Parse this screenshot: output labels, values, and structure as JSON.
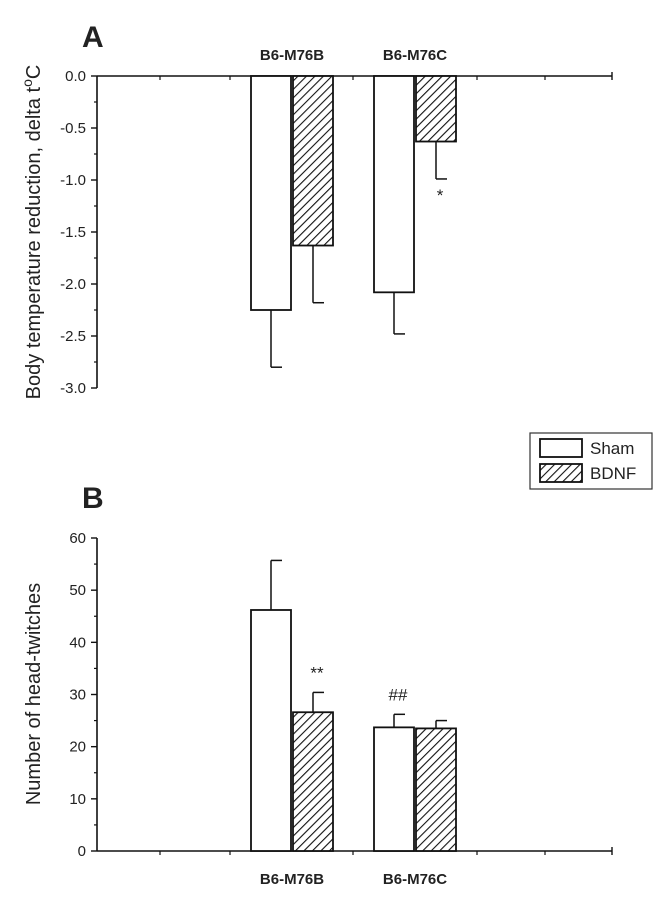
{
  "panel_a_label": "A",
  "panel_b_label": "B",
  "legend": [
    {
      "label": "Sham",
      "pattern": "open"
    },
    {
      "label": "BDNF",
      "pattern": "hatched"
    }
  ],
  "chart_data": [
    {
      "type": "bar",
      "panel": "A",
      "categories": [
        "B6-M76B",
        "B6-M76C"
      ],
      "ylabel_main": "Body temperature reduction, delta t",
      "ylabel_sup": "o",
      "ylabel_tail": "C",
      "ylim": [
        -3.0,
        0.0
      ],
      "yticks": [
        0.0,
        -0.5,
        -1.0,
        -1.5,
        -2.0,
        -2.5,
        -3.0
      ],
      "ytick_labels": [
        "0.0",
        "-0.5",
        "-1.0",
        "-1.5",
        "-2.0",
        "-2.5",
        "-3.0"
      ],
      "series": [
        {
          "name": "Sham",
          "values": [
            -2.25,
            -2.08
          ],
          "errors": [
            0.55,
            0.4
          ]
        },
        {
          "name": "BDNF",
          "values": [
            -1.63,
            -0.63
          ],
          "errors": [
            0.55,
            0.36
          ]
        }
      ],
      "annotations": [
        {
          "category": "B6-M76C",
          "series": "BDNF",
          "text": "*"
        }
      ]
    },
    {
      "type": "bar",
      "panel": "B",
      "categories": [
        "B6-M76B",
        "B6-M76C"
      ],
      "ylabel": "Number of head-twitches",
      "ylim": [
        0,
        60
      ],
      "yticks": [
        0,
        10,
        20,
        30,
        40,
        50,
        60
      ],
      "ytick_labels": [
        "0",
        "10",
        "20",
        "30",
        "40",
        "50",
        "60"
      ],
      "series": [
        {
          "name": "Sham",
          "values": [
            46.2,
            23.7
          ],
          "errors": [
            9.5,
            2.5
          ]
        },
        {
          "name": "BDNF",
          "values": [
            26.6,
            23.5
          ],
          "errors": [
            3.8,
            1.5
          ]
        }
      ],
      "annotations": [
        {
          "category": "B6-M76B",
          "series": "BDNF",
          "text": "**"
        },
        {
          "category": "B6-M76C",
          "series": "Sham",
          "text": "##"
        }
      ]
    }
  ]
}
